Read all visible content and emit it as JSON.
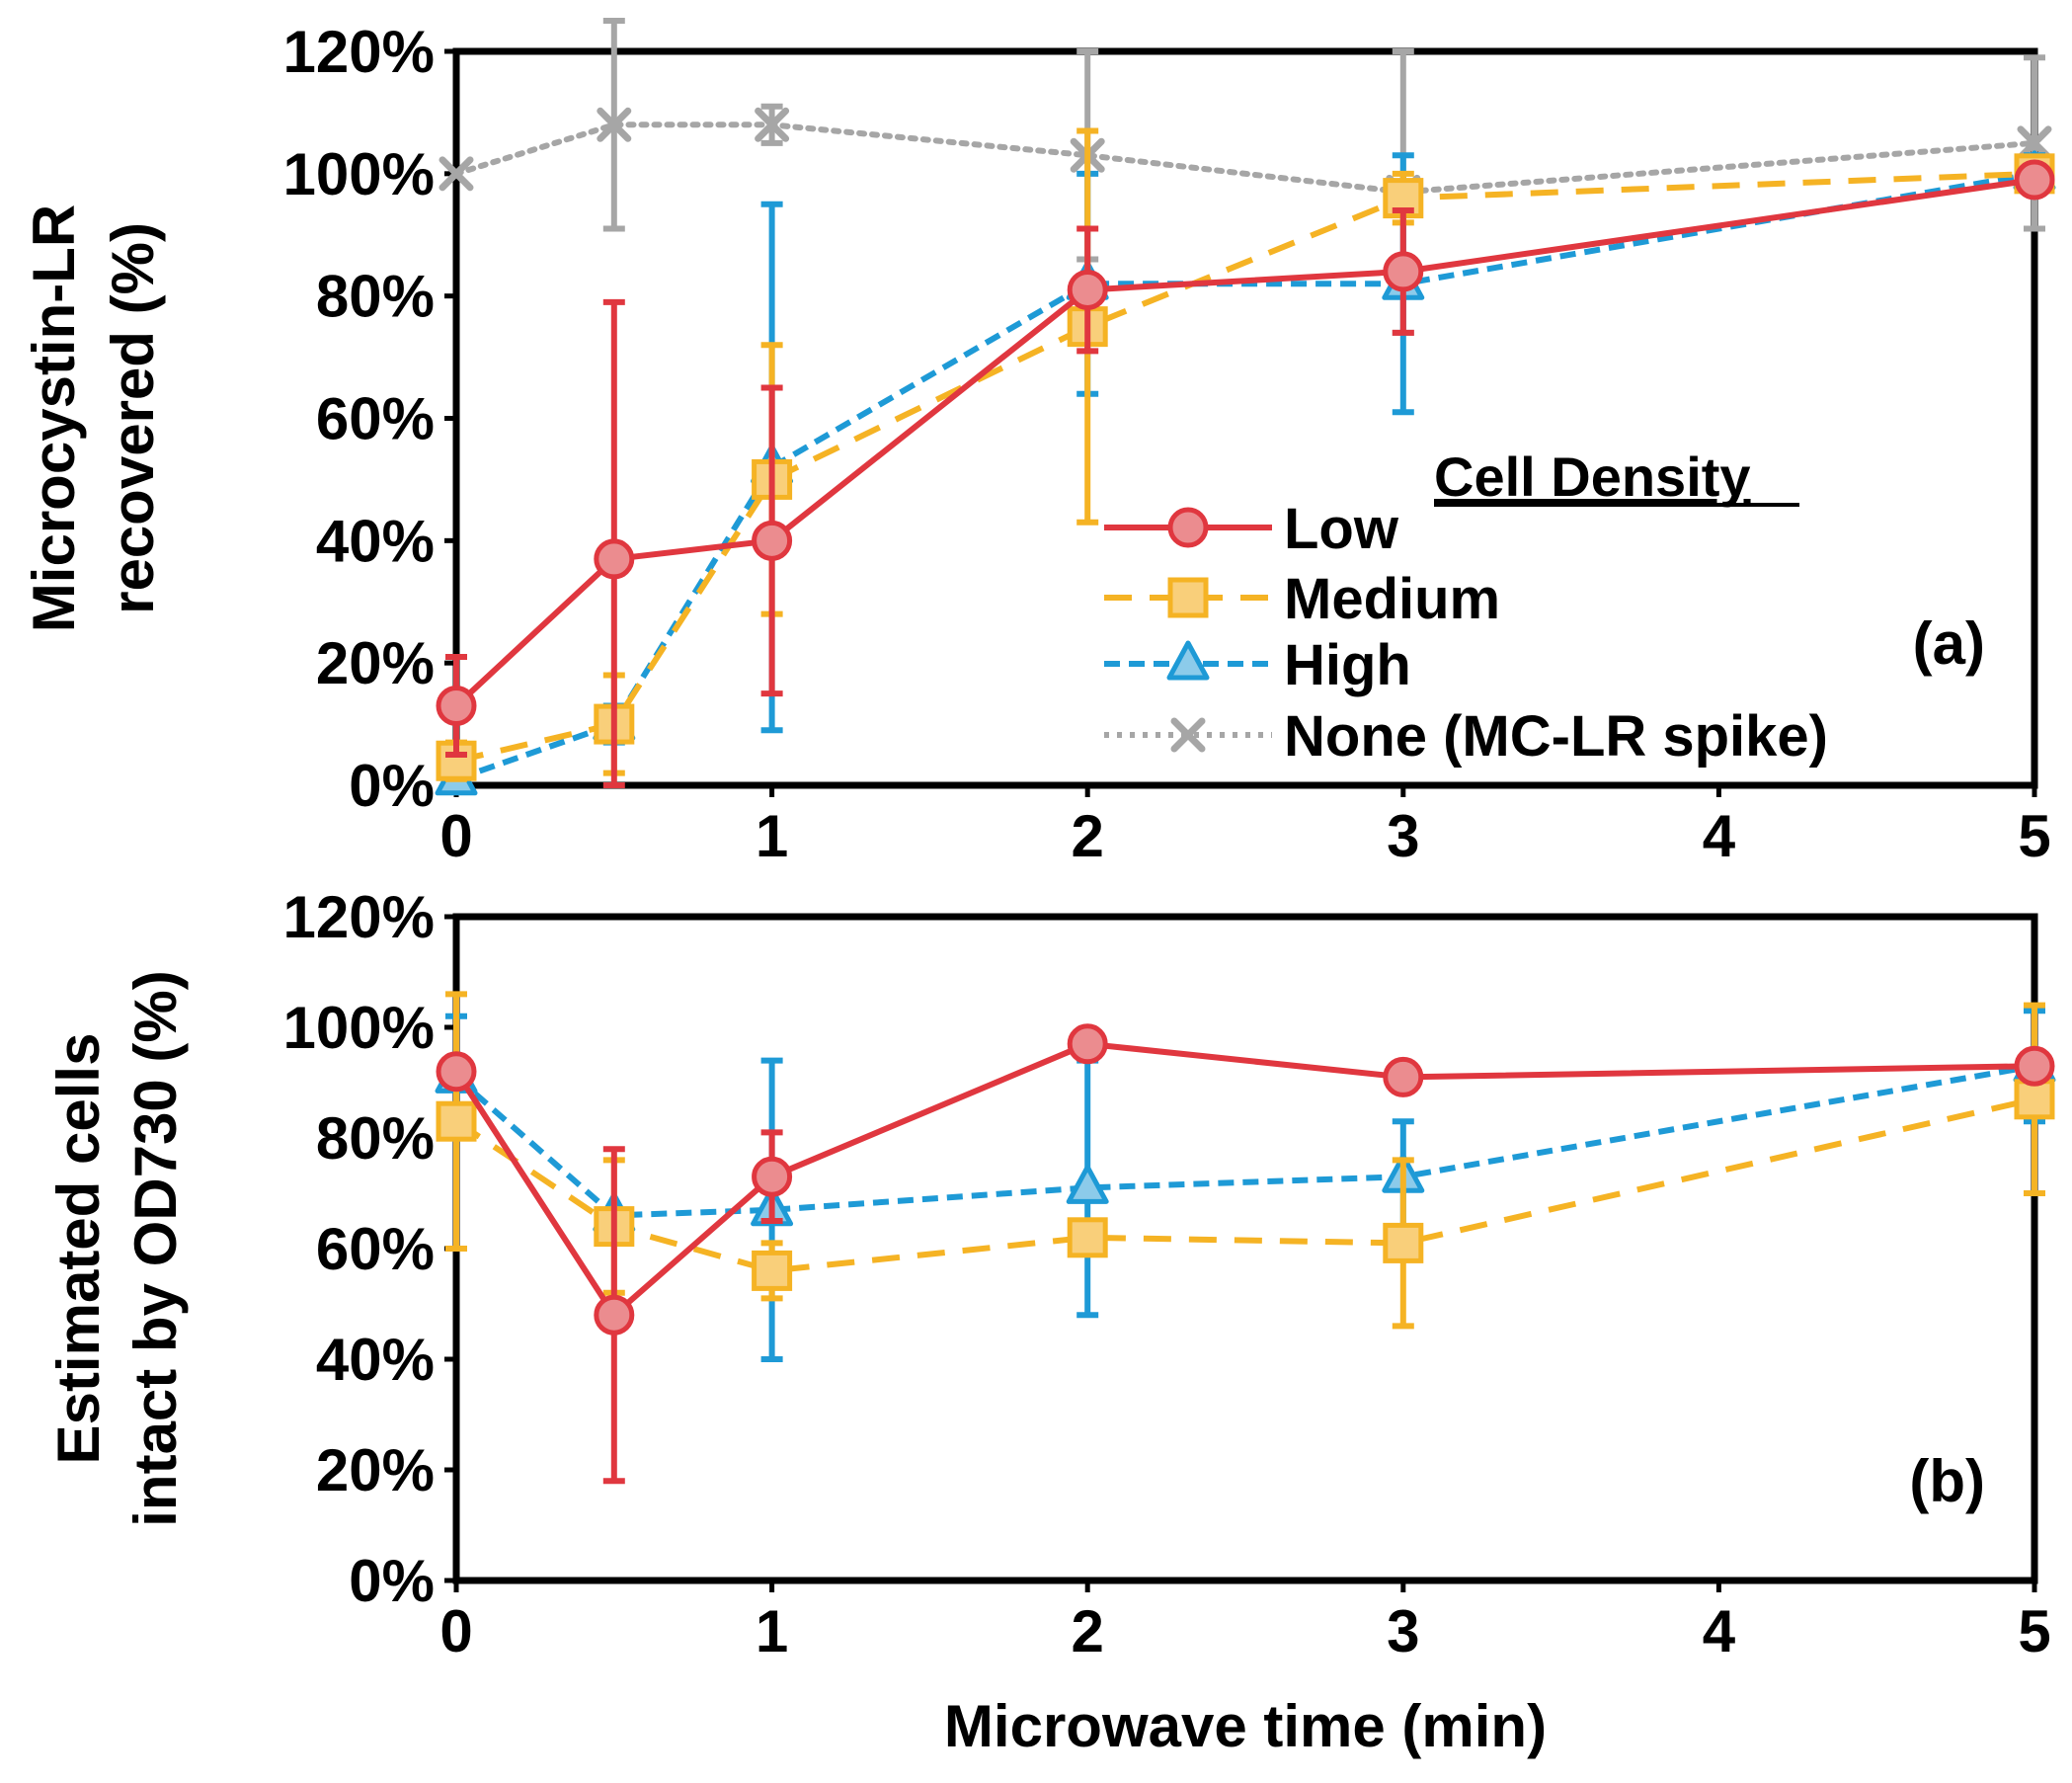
{
  "chart_data": [
    {
      "type": "line",
      "panel_label": "(a)",
      "xlabel": "",
      "ylabel_lines": [
        "Microcystin-LR",
        "recovered (%)"
      ],
      "xlim": [
        0,
        5
      ],
      "ylim": [
        0,
        120
      ],
      "x_ticks": [
        "0",
        "1",
        "2",
        "3",
        "4",
        "5"
      ],
      "y_ticks": [
        "0%",
        "20%",
        "40%",
        "60%",
        "80%",
        "100%",
        "120%"
      ],
      "legend_title": "Cell Density",
      "legend_labels": [
        "Low",
        "Medium",
        "High",
        "None (MC-LR spike)"
      ],
      "series": [
        {
          "name": "Low",
          "color": "#e0373f",
          "x": [
            0,
            0.5,
            1,
            2,
            3,
            5
          ],
          "y": [
            13,
            37,
            40,
            81,
            84,
            99
          ],
          "err": [
            8,
            42,
            25,
            10,
            10,
            2
          ]
        },
        {
          "name": "Medium",
          "color": "#f5b324",
          "x": [
            0,
            0.5,
            1,
            2,
            3,
            5
          ],
          "y": [
            4,
            10,
            50,
            75,
            96,
            100
          ],
          "err": [
            3,
            8,
            22,
            32,
            4,
            2
          ]
        },
        {
          "name": "High",
          "color": "#1e9ad6",
          "x": [
            0,
            0.5,
            1,
            2,
            3,
            5
          ],
          "y": [
            1,
            10,
            52,
            82,
            82,
            100
          ],
          "err": [
            1,
            3,
            43,
            18,
            21,
            3
          ]
        },
        {
          "name": "None (MC-LR spike)",
          "color": "#a6a6a6",
          "x": [
            0,
            0.5,
            1,
            2,
            3,
            5
          ],
          "y": [
            100,
            108,
            108,
            103,
            97,
            105
          ],
          "err": [
            0,
            17,
            3,
            17,
            23,
            14
          ]
        }
      ]
    },
    {
      "type": "line",
      "panel_label": "(b)",
      "xlabel": "Microwave time (min)",
      "ylabel_lines": [
        "Estimated cells",
        "intact by OD730 (%)"
      ],
      "xlim": [
        0,
        5
      ],
      "ylim": [
        0,
        120
      ],
      "x_ticks": [
        "0",
        "1",
        "2",
        "3",
        "4",
        "5"
      ],
      "y_ticks": [
        "0%",
        "20%",
        "40%",
        "60%",
        "80%",
        "100%",
        "120%"
      ],
      "series": [
        {
          "name": "Low",
          "color": "#e0373f",
          "x": [
            0,
            0.5,
            1,
            2,
            3,
            5
          ],
          "y": [
            92,
            48,
            73,
            97,
            91,
            93
          ],
          "err": [
            0,
            30,
            8,
            0,
            0,
            0
          ]
        },
        {
          "name": "Medium",
          "color": "#f5b324",
          "x": [
            0,
            0.5,
            1,
            2,
            3,
            5
          ],
          "y": [
            83,
            64,
            56,
            62,
            61,
            87
          ],
          "err": [
            23,
            12,
            5,
            3,
            15,
            17
          ]
        },
        {
          "name": "High",
          "color": "#1e9ad6",
          "x": [
            0,
            0.5,
            1,
            2,
            3,
            5
          ],
          "y": [
            91,
            66,
            67,
            71,
            73,
            93
          ],
          "err": [
            11,
            0,
            27,
            23,
            10,
            10
          ]
        }
      ]
    }
  ]
}
